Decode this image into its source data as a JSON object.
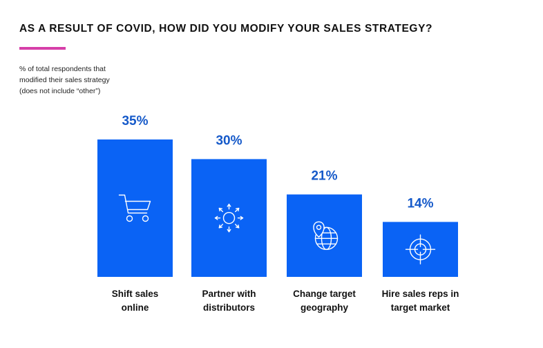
{
  "header": {
    "title": "AS A RESULT OF COVID, HOW DID YOU MODIFY YOUR SALES STRATEGY?",
    "note_lines": [
      "% of total respondents that",
      "modified their sales strategy",
      "(does not include “other”)"
    ]
  },
  "colors": {
    "bar": "#0a63f5",
    "label": "#1559c9",
    "accent": "#d63fa9"
  },
  "chart_data": {
    "type": "bar",
    "title": "AS A RESULT OF COVID, HOW DID YOU MODIFY YOUR SALES STRATEGY?",
    "ylabel": "% of total respondents that modified their sales strategy (does not include “other”)",
    "xlabel": "",
    "unit": "%",
    "categories": [
      [
        "Shift sales",
        "online"
      ],
      [
        "Partner with",
        "distributors"
      ],
      [
        "Change target",
        "geography"
      ],
      [
        "Hire sales reps in",
        "target market"
      ]
    ],
    "values": [
      35,
      30,
      21,
      14
    ],
    "value_labels": [
      "35%",
      "30%",
      "21%",
      "14%"
    ],
    "icons": [
      "shopping-cart-icon",
      "network-arrows-icon",
      "globe-location-icon",
      "crosshair-target-icon"
    ],
    "ylim": [
      0,
      35
    ],
    "grid": false,
    "legend": "none"
  }
}
